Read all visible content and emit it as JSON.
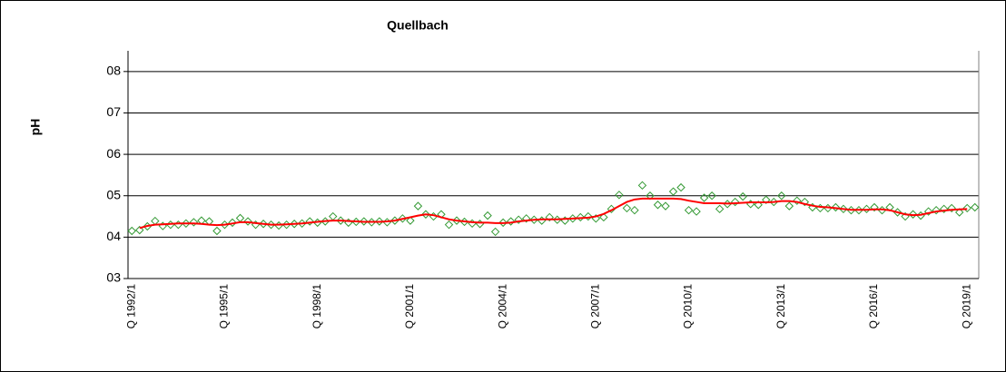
{
  "chart_data": {
    "type": "line",
    "title": "Quellbach",
    "y_label": "pH",
    "categories": [
      "Q 1992/1",
      null,
      null,
      null,
      null,
      null,
      null,
      null,
      null,
      null,
      null,
      null,
      "Q 1995/1",
      null,
      null,
      null,
      null,
      null,
      null,
      null,
      null,
      null,
      null,
      null,
      "Q 1998/1",
      null,
      null,
      null,
      null,
      null,
      null,
      null,
      null,
      null,
      null,
      null,
      "Q 2001/1",
      null,
      null,
      null,
      null,
      null,
      null,
      null,
      null,
      null,
      null,
      null,
      "Q 2004/1",
      null,
      null,
      null,
      null,
      null,
      null,
      null,
      null,
      null,
      null,
      null,
      "Q 2007/1",
      null,
      null,
      null,
      null,
      null,
      null,
      null,
      null,
      null,
      null,
      null,
      "Q 2010/1",
      null,
      null,
      null,
      null,
      null,
      null,
      null,
      null,
      null,
      null,
      null,
      "Q 2013/1",
      null,
      null,
      null,
      null,
      null,
      null,
      null,
      null,
      null,
      null,
      null,
      "Q 2016/1",
      null,
      null,
      null,
      null,
      null,
      null,
      null,
      null,
      null,
      null,
      null,
      "Q 2019/1",
      null
    ],
    "series": [
      {
        "color": "#339933",
        "marker": "diamond",
        "show_line": false,
        "values": [
          4.15,
          4.17,
          4.26,
          4.39,
          4.27,
          4.3,
          4.3,
          4.33,
          4.36,
          4.4,
          4.38,
          4.15,
          4.3,
          4.35,
          4.46,
          4.38,
          4.3,
          4.32,
          4.3,
          4.28,
          4.3,
          4.32,
          4.33,
          4.38,
          4.35,
          4.38,
          4.5,
          4.4,
          4.35,
          4.37,
          4.38,
          4.36,
          4.38,
          4.36,
          4.4,
          4.45,
          4.4,
          4.75,
          4.55,
          4.5,
          4.55,
          4.3,
          4.4,
          4.37,
          4.33,
          4.32,
          4.52,
          4.13,
          4.35,
          4.38,
          4.42,
          4.45,
          4.42,
          4.4,
          4.48,
          4.42,
          4.4,
          4.45,
          4.48,
          4.5,
          4.45,
          4.48,
          4.68,
          5.02,
          4.7,
          4.65,
          5.25,
          5.0,
          4.78,
          4.75,
          5.1,
          5.2,
          4.65,
          4.62,
          4.95,
          5.0,
          4.68,
          4.8,
          4.85,
          4.98,
          4.8,
          4.78,
          4.9,
          4.85,
          5.0,
          4.75,
          4.88,
          4.85,
          4.72,
          4.7,
          4.7,
          4.72,
          4.68,
          4.65,
          4.65,
          4.68,
          4.72,
          4.65,
          4.72,
          4.6,
          4.5,
          4.55,
          4.52,
          4.62,
          4.65,
          4.68,
          4.7,
          4.6,
          4.7,
          4.72
        ]
      },
      {
        "color": "#ff0000",
        "marker": "none",
        "show_line": true,
        "values": [
          null,
          4.22,
          4.27,
          4.3,
          4.31,
          4.32,
          4.33,
          4.33,
          4.33,
          4.32,
          4.3,
          4.29,
          4.3,
          4.33,
          4.36,
          4.36,
          4.34,
          4.32,
          4.3,
          4.3,
          4.31,
          4.32,
          4.33,
          4.35,
          4.37,
          4.39,
          4.4,
          4.4,
          4.39,
          4.38,
          4.37,
          4.37,
          4.37,
          4.38,
          4.4,
          4.44,
          4.48,
          4.52,
          4.55,
          4.53,
          4.48,
          4.43,
          4.4,
          4.38,
          4.36,
          4.35,
          4.35,
          4.34,
          4.34,
          4.35,
          4.38,
          4.4,
          4.42,
          4.43,
          4.43,
          4.43,
          4.44,
          4.45,
          4.46,
          4.47,
          4.5,
          4.56,
          4.65,
          4.75,
          4.85,
          4.91,
          4.93,
          4.93,
          4.93,
          4.93,
          4.93,
          4.92,
          4.88,
          4.85,
          4.82,
          4.82,
          4.82,
          4.81,
          4.82,
          4.83,
          4.84,
          4.84,
          4.84,
          4.85,
          4.87,
          4.87,
          4.85,
          4.8,
          4.76,
          4.73,
          4.72,
          4.7,
          4.68,
          4.66,
          4.66,
          4.66,
          4.67,
          4.67,
          4.65,
          4.6,
          4.55,
          4.53,
          4.54,
          4.58,
          4.62,
          4.64,
          4.66,
          4.67,
          4.68,
          null
        ]
      }
    ],
    "ylim": [
      3,
      8.5
    ],
    "yticks": [
      {
        "value": 3,
        "label": "03"
      },
      {
        "value": 4,
        "label": "04"
      },
      {
        "value": 5,
        "label": "05"
      },
      {
        "value": 6,
        "label": "06"
      },
      {
        "value": 7,
        "label": "07"
      },
      {
        "value": 8,
        "label": "08"
      }
    ],
    "grid": true
  }
}
